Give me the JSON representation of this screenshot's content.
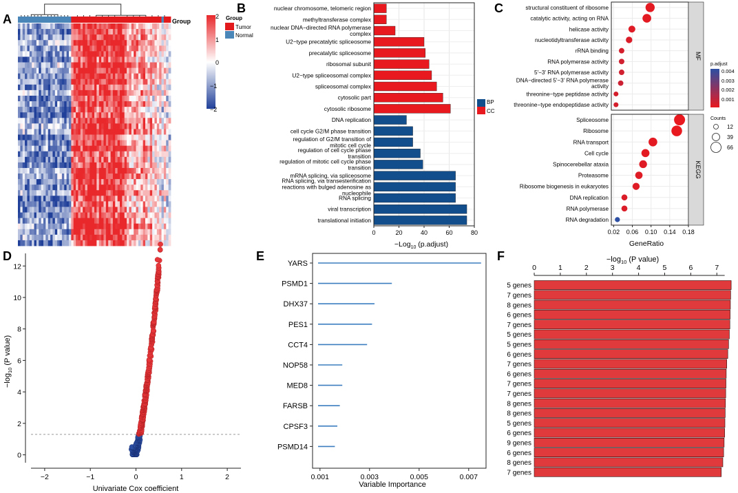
{
  "panel_labels": [
    "A",
    "B",
    "C",
    "D",
    "E",
    "F"
  ],
  "chart_data": [
    {
      "panel": "A",
      "type": "heatmap",
      "annotation_label": "Group",
      "legend_title": "Group",
      "legend_entries": [
        {
          "name": "Tumor",
          "color": "#e31a1c"
        },
        {
          "name": "Normal",
          "color": "#4a86b8"
        }
      ],
      "colorbar_ticks": [
        "2",
        "1",
        "0",
        "−1",
        "−2"
      ],
      "colorbar_colors": {
        "high": "#e8282b",
        "mid": "#ffffff",
        "low": "#1f3f99"
      },
      "normal_fraction": 0.355
    },
    {
      "panel": "B",
      "type": "bar",
      "orientation": "horizontal",
      "xlabel": "−Log",
      "xlabel_sub": "10",
      "xlabel_tail": " (p.adjust)",
      "xticks": [
        0,
        20,
        40,
        60,
        80
      ],
      "xlim": [
        0,
        80
      ],
      "legend": [
        {
          "name": "BP",
          "color": "#124d8c"
        },
        {
          "name": "CC",
          "color": "#e8191f"
        }
      ],
      "bars": [
        {
          "label": "nuclear chromosome, telomeric region",
          "value": 10,
          "group": "CC"
        },
        {
          "label": "methyltransferase complex",
          "value": 10,
          "group": "CC"
        },
        {
          "label": "nuclear DNA−directed RNA polymerase complex",
          "value": 17,
          "group": "CC"
        },
        {
          "label": "U2−type precatalytic spliceosome",
          "value": 40,
          "group": "CC"
        },
        {
          "label": "precatalytic spliceosome",
          "value": 41,
          "group": "CC"
        },
        {
          "label": "ribosomal subunit",
          "value": 44,
          "group": "CC"
        },
        {
          "label": "U2−type spliceosomal complex",
          "value": 46,
          "group": "CC"
        },
        {
          "label": "spliceosomal complex",
          "value": 50,
          "group": "CC"
        },
        {
          "label": "cytosolic part",
          "value": 55,
          "group": "CC"
        },
        {
          "label": "cytosolic ribosome",
          "value": 61,
          "group": "CC"
        },
        {
          "label": "DNA replication",
          "value": 26,
          "group": "BP"
        },
        {
          "label": "cell cycle G2/M phase transition",
          "value": 31,
          "group": "BP"
        },
        {
          "label": "regulation of G2/M transition of mitotic cell cycle",
          "value": 31,
          "group": "BP"
        },
        {
          "label": "regulation of cell cycle phase transition",
          "value": 37,
          "group": "BP"
        },
        {
          "label": "regulation of mitotic cell cycle phase transition",
          "value": 39,
          "group": "BP"
        },
        {
          "label": "mRNA splicing, via spliceosome",
          "value": 65,
          "group": "BP"
        },
        {
          "label": "RNA splicing, via transesterification reactions with bulged adenosine as nucleophile",
          "value": 65,
          "group": "BP"
        },
        {
          "label": "RNA splicing",
          "value": 65,
          "group": "BP"
        },
        {
          "label": "viral transcription",
          "value": 74,
          "group": "BP"
        },
        {
          "label": "translational initiation",
          "value": 74,
          "group": "BP"
        }
      ]
    },
    {
      "panel": "C",
      "type": "scatter",
      "xlabel": "GeneRatio",
      "xticks": [
        0.02,
        0.06,
        0.1,
        0.14,
        0.18
      ],
      "xlim": [
        0.015,
        0.18
      ],
      "padjust_title": "p.adjust",
      "padjust_ticks": [
        "0.004",
        "0.003",
        "0.002",
        "0.001"
      ],
      "counts_title": "Counts",
      "counts_legend": [
        12,
        39,
        66
      ],
      "facets": [
        {
          "name": "MF",
          "points": [
            {
              "label": "structural constituent of ribosome",
              "x": 0.098,
              "count": 50,
              "padj": 0.0003
            },
            {
              "label": "catalytic activity, acting on RNA",
              "x": 0.091,
              "count": 46,
              "padj": 0.0003
            },
            {
              "label": "helicase activity",
              "x": 0.059,
              "count": 30,
              "padj": 0.0004
            },
            {
              "label": "nucleotidyltransferase activity",
              "x": 0.053,
              "count": 26,
              "padj": 0.0005
            },
            {
              "label": "rRNA binding",
              "x": 0.037,
              "count": 18,
              "padj": 0.0006
            },
            {
              "label": "RNA polymerase activity",
              "x": 0.037,
              "count": 18,
              "padj": 0.0007
            },
            {
              "label": "5'−3' RNA polymerase activity",
              "x": 0.037,
              "count": 18,
              "padj": 0.0007
            },
            {
              "label": "DNA−directed 5'−3' RNA polymerase activity",
              "x": 0.035,
              "count": 17,
              "padj": 0.0008
            },
            {
              "label": "threonine−type peptidase activity",
              "x": 0.025,
              "count": 12,
              "padj": 0.0006
            },
            {
              "label": "threonine−type endopeptidase activity",
              "x": 0.025,
              "count": 12,
              "padj": 0.0006
            }
          ]
        },
        {
          "name": "KEGG",
          "points": [
            {
              "label": "Spliceosome",
              "x": 0.161,
              "count": 66,
              "padj": 0.0002
            },
            {
              "label": "Ribosome",
              "x": 0.155,
              "count": 63,
              "padj": 0.0002
            },
            {
              "label": "RNA transport",
              "x": 0.104,
              "count": 46,
              "padj": 0.0003
            },
            {
              "label": "Cell cycle",
              "x": 0.088,
              "count": 40,
              "padj": 0.0003
            },
            {
              "label": "Spinocerebellar ataxia",
              "x": 0.083,
              "count": 38,
              "padj": 0.0004
            },
            {
              "label": "Proteasome",
              "x": 0.074,
              "count": 34,
              "padj": 0.0004
            },
            {
              "label": "Ribosome biogenesis in eukaryotes",
              "x": 0.068,
              "count": 32,
              "padj": 0.0004
            },
            {
              "label": "DNA replication",
              "x": 0.043,
              "count": 22,
              "padj": 0.0005
            },
            {
              "label": "RNA polymerase",
              "x": 0.043,
              "count": 22,
              "padj": 0.0005
            },
            {
              "label": "RNA degradation",
              "x": 0.028,
              "count": 14,
              "padj": 0.0042
            }
          ]
        }
      ]
    },
    {
      "panel": "D",
      "type": "scatter",
      "xlabel": "Univariate Cox coefficient",
      "ylabel": "−log",
      "ylabel_sub": "10",
      "ylabel_tail": " (P value)",
      "xticks": [
        -2,
        -1,
        0,
        1,
        2
      ],
      "yticks": [
        0,
        2,
        4,
        6,
        8,
        10,
        12
      ],
      "xlim": [
        -2.3,
        2.3
      ],
      "ylim": [
        -0.5,
        12.8
      ],
      "threshold": 1.3,
      "significant_color": "#e8373a",
      "nonsignificant_color": "#2d4fa3"
    },
    {
      "panel": "E",
      "type": "bar",
      "orientation": "horizontal",
      "xlabel": "Variable Importance",
      "xticks": [
        "0.001",
        "0.003",
        "0.005",
        "0.007"
      ],
      "xtick_values": [
        0.001,
        0.003,
        0.005,
        0.007
      ],
      "xlim": [
        0.0007,
        0.0077
      ],
      "bar_color": "#3b7dbf",
      "bars": [
        {
          "label": "YARS",
          "value": 0.0075
        },
        {
          "label": "PSMD1",
          "value": 0.0039
        },
        {
          "label": "DHX37",
          "value": 0.0032
        },
        {
          "label": "PES1",
          "value": 0.0031
        },
        {
          "label": "CCT4",
          "value": 0.0029
        },
        {
          "label": "NOP58",
          "value": 0.0019
        },
        {
          "label": "MED8",
          "value": 0.0019
        },
        {
          "label": "FARSB",
          "value": 0.0018
        },
        {
          "label": "CPSF3",
          "value": 0.0017
        },
        {
          "label": "PSMD14",
          "value": 0.0016
        }
      ]
    },
    {
      "panel": "F",
      "type": "bar",
      "orientation": "horizontal",
      "xlabel": "−log",
      "xlabel_sub": "10",
      "xlabel_tail": " (P value)",
      "xticks": [
        0,
        1,
        2,
        3,
        4,
        5,
        6,
        7
      ],
      "xlim": [
        0,
        7.6
      ],
      "bar_color": "#e03a3c",
      "bars": [
        {
          "label": "5 genes",
          "value": 7.55
        },
        {
          "label": "7 genes",
          "value": 7.53
        },
        {
          "label": "8 genes",
          "value": 7.52
        },
        {
          "label": "6 genes",
          "value": 7.51
        },
        {
          "label": "7 genes",
          "value": 7.5
        },
        {
          "label": "5 genes",
          "value": 7.48
        },
        {
          "label": "5 genes",
          "value": 7.45
        },
        {
          "label": "6 genes",
          "value": 7.42
        },
        {
          "label": "7 genes",
          "value": 7.38
        },
        {
          "label": "6 genes",
          "value": 7.36
        },
        {
          "label": "7 genes",
          "value": 7.35
        },
        {
          "label": "7 genes",
          "value": 7.34
        },
        {
          "label": "8 genes",
          "value": 7.33
        },
        {
          "label": "8 genes",
          "value": 7.32
        },
        {
          "label": "5 genes",
          "value": 7.31
        },
        {
          "label": "6 genes",
          "value": 7.3
        },
        {
          "label": "9 genes",
          "value": 7.28
        },
        {
          "label": "6 genes",
          "value": 7.26
        },
        {
          "label": "8 genes",
          "value": 7.23
        },
        {
          "label": "7 genes",
          "value": 7.17
        }
      ]
    }
  ]
}
